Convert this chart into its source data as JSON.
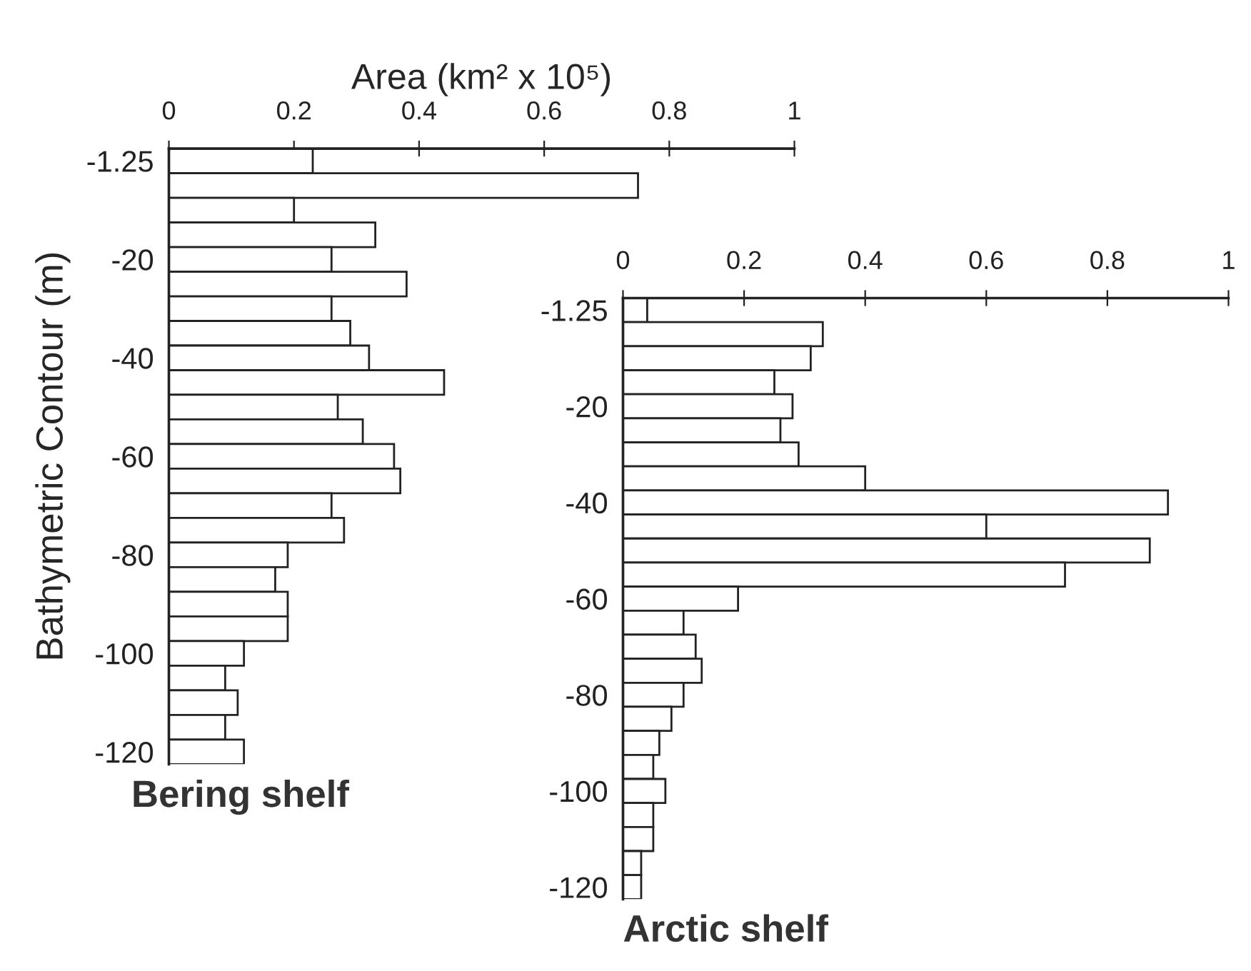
{
  "chart_data": [
    {
      "type": "bar",
      "orientation": "horizontal",
      "title": "Bering shelf",
      "xlabel": "Area (km² x 10⁵)",
      "ylabel": "Bathymetric Contour (m)",
      "categories": [
        "-1.25",
        null,
        null,
        null,
        "-20",
        null,
        null,
        null,
        "-40",
        null,
        null,
        null,
        "-60",
        null,
        null,
        null,
        "-80",
        null,
        null,
        null,
        "-100",
        null,
        null,
        null,
        "-120"
      ],
      "values": [
        0.23,
        0.75,
        0.2,
        0.33,
        0.26,
        0.38,
        0.26,
        0.29,
        0.32,
        0.44,
        0.27,
        0.31,
        0.36,
        0.37,
        0.26,
        0.28,
        0.19,
        0.17,
        0.19,
        0.19,
        0.12,
        0.09,
        0.11,
        0.09,
        0.12
      ],
      "color": "#ffffff",
      "xlim": [
        0,
        1
      ],
      "xticks": [
        0,
        0.2,
        0.4,
        0.6,
        0.8,
        1
      ]
    },
    {
      "type": "bar",
      "orientation": "horizontal",
      "title": "Arctic shelf",
      "categories": [
        "-1.25",
        null,
        null,
        null,
        "-20",
        null,
        null,
        null,
        "-40",
        null,
        null,
        null,
        "-60",
        null,
        null,
        null,
        "-80",
        null,
        null,
        null,
        "-100",
        null,
        null,
        null,
        "-120"
      ],
      "values": [
        0.04,
        0.33,
        0.31,
        0.25,
        0.28,
        0.26,
        0.29,
        0.4,
        0.9,
        0.6,
        0.87,
        0.73,
        0.19,
        0.1,
        0.12,
        0.13,
        0.1,
        0.08,
        0.06,
        0.05,
        0.07,
        0.05,
        0.05,
        0.03,
        0.03
      ],
      "color": "#ffffff",
      "xlim": [
        0,
        1
      ],
      "xticks": [
        0,
        0.2,
        0.4,
        0.6,
        0.8,
        1
      ]
    }
  ]
}
